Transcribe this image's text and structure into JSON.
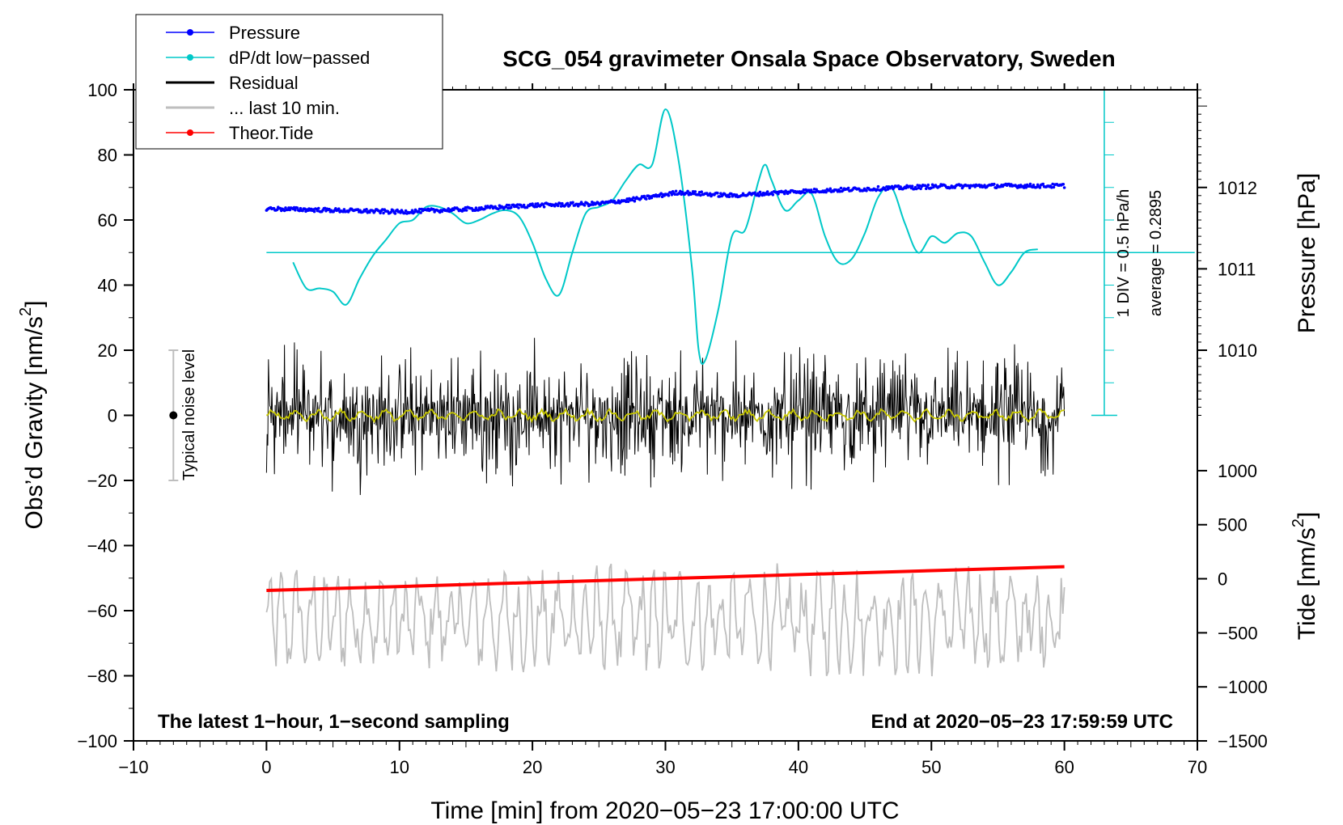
{
  "chart_data": {
    "type": "line",
    "title": "SCG_054 gravimeter Onsala Space Observatory, Sweden",
    "xlabel": "Time [min] from 2020−05−23 17:00:00 UTC",
    "ylabel_left": "Obs’d Gravity [nm/s²]",
    "ylabel_left_main": "Obs’d Gravity [nm/s",
    "ylabel_left_sup": "2",
    "ylabel_left_end": "]",
    "ylabel_pressure": "Pressure [hPa]",
    "ylabel_tide_main": "Tide [nm/s",
    "ylabel_tide_sup": "2",
    "ylabel_tide_end": "]",
    "xlim": [
      -10,
      70
    ],
    "ylim": [
      -100,
      100
    ],
    "x_ticks": [
      -10,
      0,
      10,
      20,
      30,
      40,
      50,
      60,
      70
    ],
    "x_tick_labels": [
      "−10",
      "0",
      "10",
      "20",
      "30",
      "40",
      "50",
      "60",
      "70"
    ],
    "y_ticks": [
      -100,
      -80,
      -60,
      -40,
      -20,
      0,
      20,
      40,
      60,
      80,
      100
    ],
    "y_tick_labels": [
      "−100",
      "−80",
      "−60",
      "−40",
      "−20",
      "0",
      "20",
      "40",
      "60",
      "80",
      "100"
    ],
    "pressure_axis": {
      "ticks": [
        1010,
        1011,
        1012
      ],
      "tick_labels": [
        "1010",
        "1011",
        "1012"
      ],
      "gravity_at": [
        20,
        45,
        70
      ]
    },
    "tide_axis": {
      "ticks": [
        -1500,
        -1000,
        -500,
        0,
        500,
        1000
      ],
      "tick_labels": [
        "−1500",
        "−1000",
        "−500",
        "0",
        "500",
        "1000"
      ],
      "gravity_at": [
        -100,
        -83.4,
        -66.8,
        -50.2,
        -33.6,
        -17
      ]
    },
    "dpdt_scale": {
      "label_div": "1 DIV = 0.5 hPa/h",
      "label_avg": "average = 0.2895",
      "x": 63,
      "y_range": [
        0,
        100
      ],
      "tick_step": 10,
      "baseline": 50
    },
    "noise_level": {
      "label": "Typical noise level",
      "x": -7,
      "y": 0,
      "y_range": [
        -20,
        20
      ]
    },
    "annotation_left": "The latest 1−hour, 1−second sampling",
    "annotation_right": "End at 2020−05−23 17:59:59 UTC",
    "series": [
      {
        "name": "Pressure",
        "color": "#0000ff",
        "style": "dots",
        "x": [
          0,
          5,
          10,
          15,
          20,
          25,
          28,
          31,
          35,
          40,
          45,
          50,
          55,
          60
        ],
        "y": [
          63.5,
          63,
          62.5,
          63.3,
          64.5,
          65,
          66.5,
          68.5,
          67.5,
          68.8,
          69.5,
          70.3,
          70.5,
          70.5
        ]
      },
      {
        "name": "dP/dt low−passed",
        "color": "#00c8c8",
        "style": "line",
        "x": [
          2,
          3,
          4,
          5,
          6,
          7,
          8,
          9,
          10,
          11,
          12,
          13,
          14,
          15,
          16,
          17,
          18,
          19,
          20,
          21,
          22,
          23,
          24,
          25,
          26,
          27,
          28,
          29,
          30,
          31,
          32,
          32.5,
          33,
          34,
          35,
          36,
          37,
          37.5,
          38,
          39,
          40,
          41,
          42,
          43,
          44,
          45,
          46,
          47,
          48,
          49,
          50,
          51,
          52,
          53,
          54,
          55,
          56,
          57,
          58
        ],
        "y": [
          47,
          39,
          39,
          38,
          34,
          42,
          49,
          54,
          59,
          60,
          64,
          64,
          62,
          59,
          60,
          62,
          63,
          61,
          53,
          42,
          37,
          50,
          62,
          64,
          66,
          72,
          77,
          77,
          94,
          78,
          45,
          20,
          17,
          33,
          55,
          57,
          72,
          77,
          72,
          63,
          66,
          68,
          55,
          47,
          48,
          56,
          67,
          70,
          59,
          50,
          55,
          53,
          56,
          55,
          47,
          40,
          44,
          50,
          51
        ]
      },
      {
        "name": "Residual",
        "color": "#000000",
        "style": "noise",
        "x_range": [
          0,
          60
        ],
        "amplitude": 22
      },
      {
        "name": "... last 10 min.",
        "color": "#bebebe",
        "style": "noise",
        "x_range": [
          0,
          60
        ],
        "center": -63,
        "amplitude": 18
      },
      {
        "name": "Theor.Tide",
        "color": "#ff0000",
        "style": "dots",
        "x": [
          0,
          60
        ],
        "y": [
          -53.8,
          -46.5
        ]
      },
      {
        "name": "Residual (smoothed)",
        "color": "#c8c800",
        "style": "noise",
        "x_range": [
          0,
          60
        ],
        "amplitude": 2
      }
    ],
    "legend": {
      "placement": "top-left",
      "entries": [
        {
          "label": "Pressure",
          "color": "#0000ff",
          "marker": true,
          "lw": 1
        },
        {
          "label": "dP/dt low−passed",
          "color": "#00c8c8",
          "marker": true,
          "lw": 1
        },
        {
          "label": "Residual",
          "color": "#000000",
          "marker": false,
          "lw": 2
        },
        {
          "label": "... last 10 min.",
          "color": "#bebebe",
          "marker": false,
          "lw": 2
        },
        {
          "label": "Theor.Tide",
          "color": "#ff0000",
          "marker": true,
          "lw": 1
        }
      ]
    }
  }
}
